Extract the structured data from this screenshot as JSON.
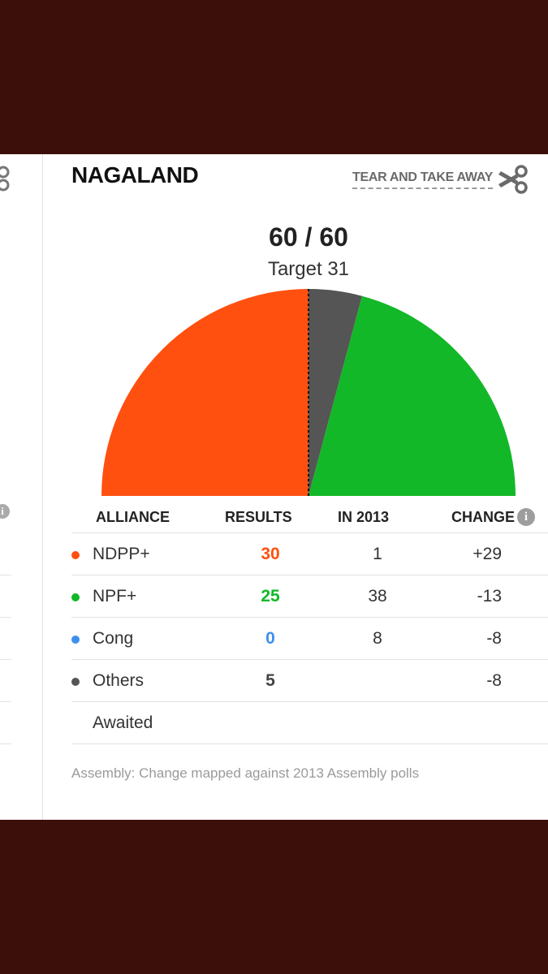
{
  "state": "NAGALAND",
  "tear_label": "TEAR AND TAKE AWAY",
  "summary": {
    "seats": "60 / 60",
    "target": "Target 31"
  },
  "table": {
    "headers": {
      "alliance": "ALLIANCE",
      "results": "RESULTS",
      "in2013": "IN 2013",
      "change": "CHANGE"
    },
    "rows": [
      {
        "name": "NDPP+",
        "results": "30",
        "in2013": "1",
        "change": "+29",
        "color": "#ff5010",
        "result_color": "#ff5010"
      },
      {
        "name": "NPF+",
        "results": "25",
        "in2013": "38",
        "change": "-13",
        "color": "#12b827",
        "result_color": "#12b827"
      },
      {
        "name": "Cong",
        "results": "0",
        "in2013": "8",
        "change": "-8",
        "color": "#3d8ff0",
        "result_color": "#3d8ff0"
      },
      {
        "name": "Others",
        "results": "5",
        "in2013": "",
        "change": "-8",
        "color": "#555555",
        "result_color": "#444444"
      },
      {
        "name": "Awaited",
        "results": "",
        "in2013": "",
        "change": "",
        "color": "",
        "result_color": "#444444"
      }
    ]
  },
  "footnote": "Assembly: Change mapped against 2013 Assembly polls",
  "chart_data": {
    "type": "pie",
    "total_seats": 60,
    "target": 31,
    "slices": [
      {
        "label": "NDPP+",
        "value": 30,
        "color": "#ff5010"
      },
      {
        "label": "Others",
        "value": 5,
        "color": "#555555"
      },
      {
        "label": "NPF+",
        "value": 25,
        "color": "#12b827"
      }
    ]
  }
}
